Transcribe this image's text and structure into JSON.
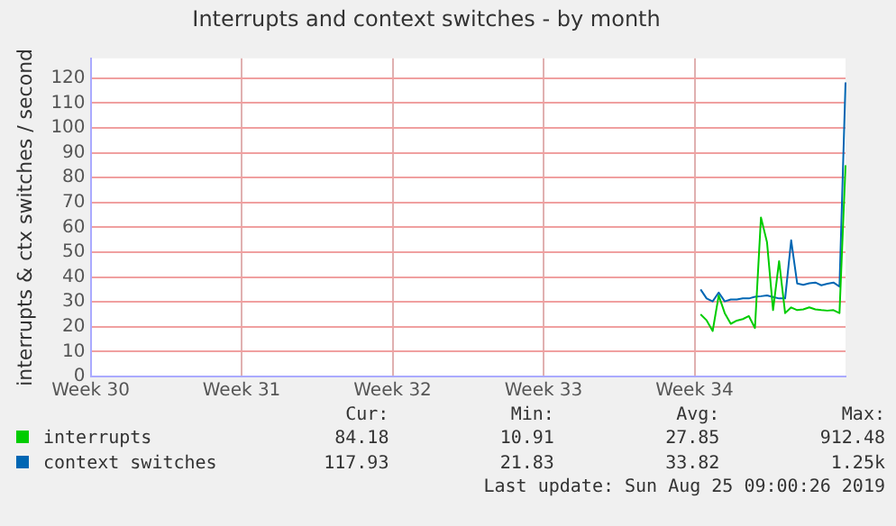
{
  "chart_data": {
    "type": "line",
    "title": "Interrupts and context switches - by month",
    "ylabel": "interrupts & ctx switches / second",
    "categories": [
      "Week 30",
      null,
      null,
      null,
      null,
      null,
      null,
      null,
      null,
      null,
      null,
      null,
      null,
      null,
      null,
      null,
      null,
      null,
      null,
      null,
      null,
      null,
      null,
      null,
      null,
      "Week 31",
      null,
      null,
      null,
      null,
      null,
      null,
      null,
      null,
      null,
      null,
      null,
      null,
      null,
      null,
      null,
      null,
      null,
      null,
      null,
      null,
      null,
      null,
      null,
      null,
      "Week 32",
      null,
      null,
      null,
      null,
      null,
      null,
      null,
      null,
      null,
      null,
      null,
      null,
      null,
      null,
      null,
      null,
      null,
      null,
      null,
      null,
      null,
      null,
      null,
      null,
      "Week 33",
      null,
      null,
      null,
      null,
      null,
      null,
      null,
      null,
      null,
      null,
      null,
      null,
      null,
      null,
      null,
      null,
      null,
      null,
      null,
      null,
      null,
      null,
      null,
      null,
      "Week 34",
      null,
      null,
      null,
      null,
      null,
      null,
      null,
      null,
      null,
      null,
      null,
      null,
      null,
      null,
      null,
      null,
      null,
      null,
      null,
      null,
      null,
      null,
      null,
      null,
      null
    ],
    "ylim": [
      0,
      128
    ],
    "yticks": [
      0,
      10,
      20,
      30,
      40,
      50,
      60,
      70,
      80,
      90,
      100,
      110,
      120
    ],
    "grid": true,
    "legend": "bottom",
    "marker": "none",
    "line_style": "solid",
    "series": [
      {
        "name": "interrupts",
        "color": "#00cc00",
        "values": [
          null,
          null,
          null,
          null,
          null,
          null,
          null,
          null,
          null,
          null,
          null,
          null,
          null,
          null,
          null,
          null,
          null,
          null,
          null,
          null,
          null,
          null,
          null,
          null,
          null,
          null,
          null,
          null,
          null,
          null,
          null,
          null,
          null,
          null,
          null,
          null,
          null,
          null,
          null,
          null,
          null,
          null,
          null,
          null,
          null,
          null,
          null,
          null,
          null,
          null,
          null,
          null,
          null,
          null,
          null,
          null,
          null,
          null,
          null,
          null,
          null,
          null,
          null,
          null,
          null,
          null,
          null,
          null,
          null,
          null,
          null,
          null,
          null,
          null,
          null,
          null,
          null,
          null,
          null,
          null,
          null,
          null,
          null,
          null,
          null,
          null,
          null,
          null,
          null,
          null,
          null,
          null,
          null,
          null,
          null,
          null,
          null,
          null,
          null,
          null,
          null,
          25,
          22.6,
          18.3,
          32.6,
          25.5,
          21.2,
          22.5,
          23.1,
          24.3,
          19.5,
          64,
          54,
          26.7,
          46.4,
          25.5,
          27.8,
          26.7,
          27,
          27.8,
          27,
          26.7,
          26.5,
          26.7,
          25.5,
          85
        ]
      },
      {
        "name": "context switches",
        "color": "#0066b3",
        "values": [
          null,
          null,
          null,
          null,
          null,
          null,
          null,
          null,
          null,
          null,
          null,
          null,
          null,
          null,
          null,
          null,
          null,
          null,
          null,
          null,
          null,
          null,
          null,
          null,
          null,
          null,
          null,
          null,
          null,
          null,
          null,
          null,
          null,
          null,
          null,
          null,
          null,
          null,
          null,
          null,
          null,
          null,
          null,
          null,
          null,
          null,
          null,
          null,
          null,
          null,
          null,
          null,
          null,
          null,
          null,
          null,
          null,
          null,
          null,
          null,
          null,
          null,
          null,
          null,
          null,
          null,
          null,
          null,
          null,
          null,
          null,
          null,
          null,
          null,
          null,
          null,
          null,
          null,
          null,
          null,
          null,
          null,
          null,
          null,
          null,
          null,
          null,
          null,
          null,
          null,
          null,
          null,
          null,
          null,
          null,
          null,
          null,
          null,
          null,
          null,
          null,
          35,
          31.4,
          30.2,
          33.8,
          30.2,
          31,
          31,
          31.4,
          31.4,
          32.1,
          32.3,
          32.6,
          32,
          31.4,
          31.4,
          54.8,
          37.4,
          36.9,
          37.5,
          37.8,
          36.7,
          37.3,
          37.8,
          36.2,
          118.3
        ]
      }
    ],
    "annotations": [
      "Cur:",
      "Min:",
      "Avg:",
      "Max:",
      "84.18",
      "10.91",
      "27.85",
      "912.48",
      "117.93",
      "21.83",
      "33.82",
      "1.25k",
      "Last update: Sun Aug 25 09:00:26 2019"
    ]
  }
}
